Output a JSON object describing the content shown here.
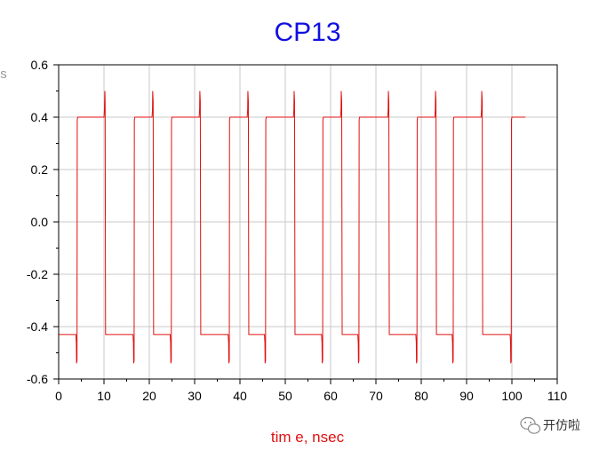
{
  "chart_data": {
    "type": "line",
    "title": "CP13",
    "xlabel": "tim e, nsec",
    "ylabel": "s",
    "xlim": [
      0,
      110
    ],
    "ylim": [
      -0.6,
      0.6
    ],
    "xticks": [
      0,
      10,
      20,
      30,
      40,
      50,
      60,
      70,
      80,
      90,
      100,
      110
    ],
    "yticks": [
      -0.6,
      -0.4,
      -0.2,
      0.0,
      0.2,
      0.4,
      0.6
    ],
    "ytick_labels": [
      "-0.6",
      "-0.4",
      "-0.2",
      "0.0",
      "0.2",
      "0.4",
      "0.6"
    ],
    "grid": true,
    "line_color": "#e01010",
    "series": [
      {
        "x": [
          0,
          3.8,
          3.9,
          3.95,
          4.05,
          4.1,
          4.2,
          10,
          10.1,
          10.2,
          10.25,
          10.35,
          10.45,
          16.4,
          16.5,
          16.55,
          16.65,
          16.7,
          16.8,
          20.6,
          20.7,
          20.75,
          20.85,
          20.95,
          24.6,
          24.7,
          24.75,
          24.85,
          24.9,
          25,
          31,
          31.1,
          31.15,
          31.25,
          31.35,
          37.4,
          37.5,
          37.55,
          37.65,
          37.7,
          37.8,
          41.6,
          41.7,
          41.75,
          41.85,
          41.95,
          45.4,
          45.5,
          45.55,
          45.65,
          45.7,
          45.8,
          51.8,
          51.9,
          51.95,
          52.05,
          52.15,
          58,
          58.1,
          58.15,
          58.25,
          58.3,
          58.4,
          62.2,
          62.3,
          62.35,
          62.45,
          62.55,
          66,
          66.1,
          66.15,
          66.25,
          66.3,
          66.4,
          72.6,
          72.7,
          72.75,
          72.85,
          72.95,
          78.8,
          78.9,
          78.95,
          79.05,
          79.1,
          79.2,
          83,
          83.1,
          83.15,
          83.25,
          83.35,
          86.8,
          86.9,
          86.95,
          87.05,
          87.1,
          87.2,
          93.2,
          93.3,
          93.35,
          93.45,
          93.55,
          99.6,
          99.7,
          99.75,
          99.85,
          99.9,
          100,
          103
        ],
        "y": [
          -0.43,
          -0.43,
          -0.46,
          -0.54,
          -0.53,
          0.39,
          0.4,
          0.4,
          0.43,
          0.5,
          0.46,
          -0.43,
          -0.43,
          -0.43,
          -0.46,
          -0.54,
          -0.53,
          0.39,
          0.4,
          0.4,
          0.43,
          0.5,
          0.46,
          -0.43,
          -0.43,
          -0.46,
          -0.54,
          -0.53,
          0.39,
          0.4,
          0.4,
          0.43,
          0.5,
          0.46,
          -0.43,
          -0.43,
          -0.46,
          -0.54,
          -0.53,
          0.39,
          0.4,
          0.4,
          0.43,
          0.5,
          0.46,
          -0.43,
          -0.43,
          -0.46,
          -0.54,
          -0.53,
          0.39,
          0.4,
          0.4,
          0.43,
          0.5,
          0.46,
          -0.43,
          -0.43,
          -0.46,
          -0.54,
          -0.53,
          0.39,
          0.4,
          0.4,
          0.43,
          0.5,
          0.46,
          -0.43,
          -0.43,
          -0.46,
          -0.54,
          -0.53,
          0.39,
          0.4,
          0.4,
          0.43,
          0.5,
          0.46,
          -0.43,
          -0.43,
          -0.46,
          -0.54,
          -0.53,
          0.39,
          0.4,
          0.4,
          0.43,
          0.5,
          0.46,
          -0.43,
          -0.43,
          -0.46,
          -0.54,
          -0.53,
          0.39,
          0.4,
          0.4,
          0.43,
          0.5,
          0.46,
          -0.43,
          -0.43,
          -0.46,
          -0.54,
          -0.53,
          0.39,
          0.4,
          0.4
        ]
      }
    ]
  },
  "watermark": {
    "text": "开仿啦",
    "icon": "wechat-icon"
  }
}
